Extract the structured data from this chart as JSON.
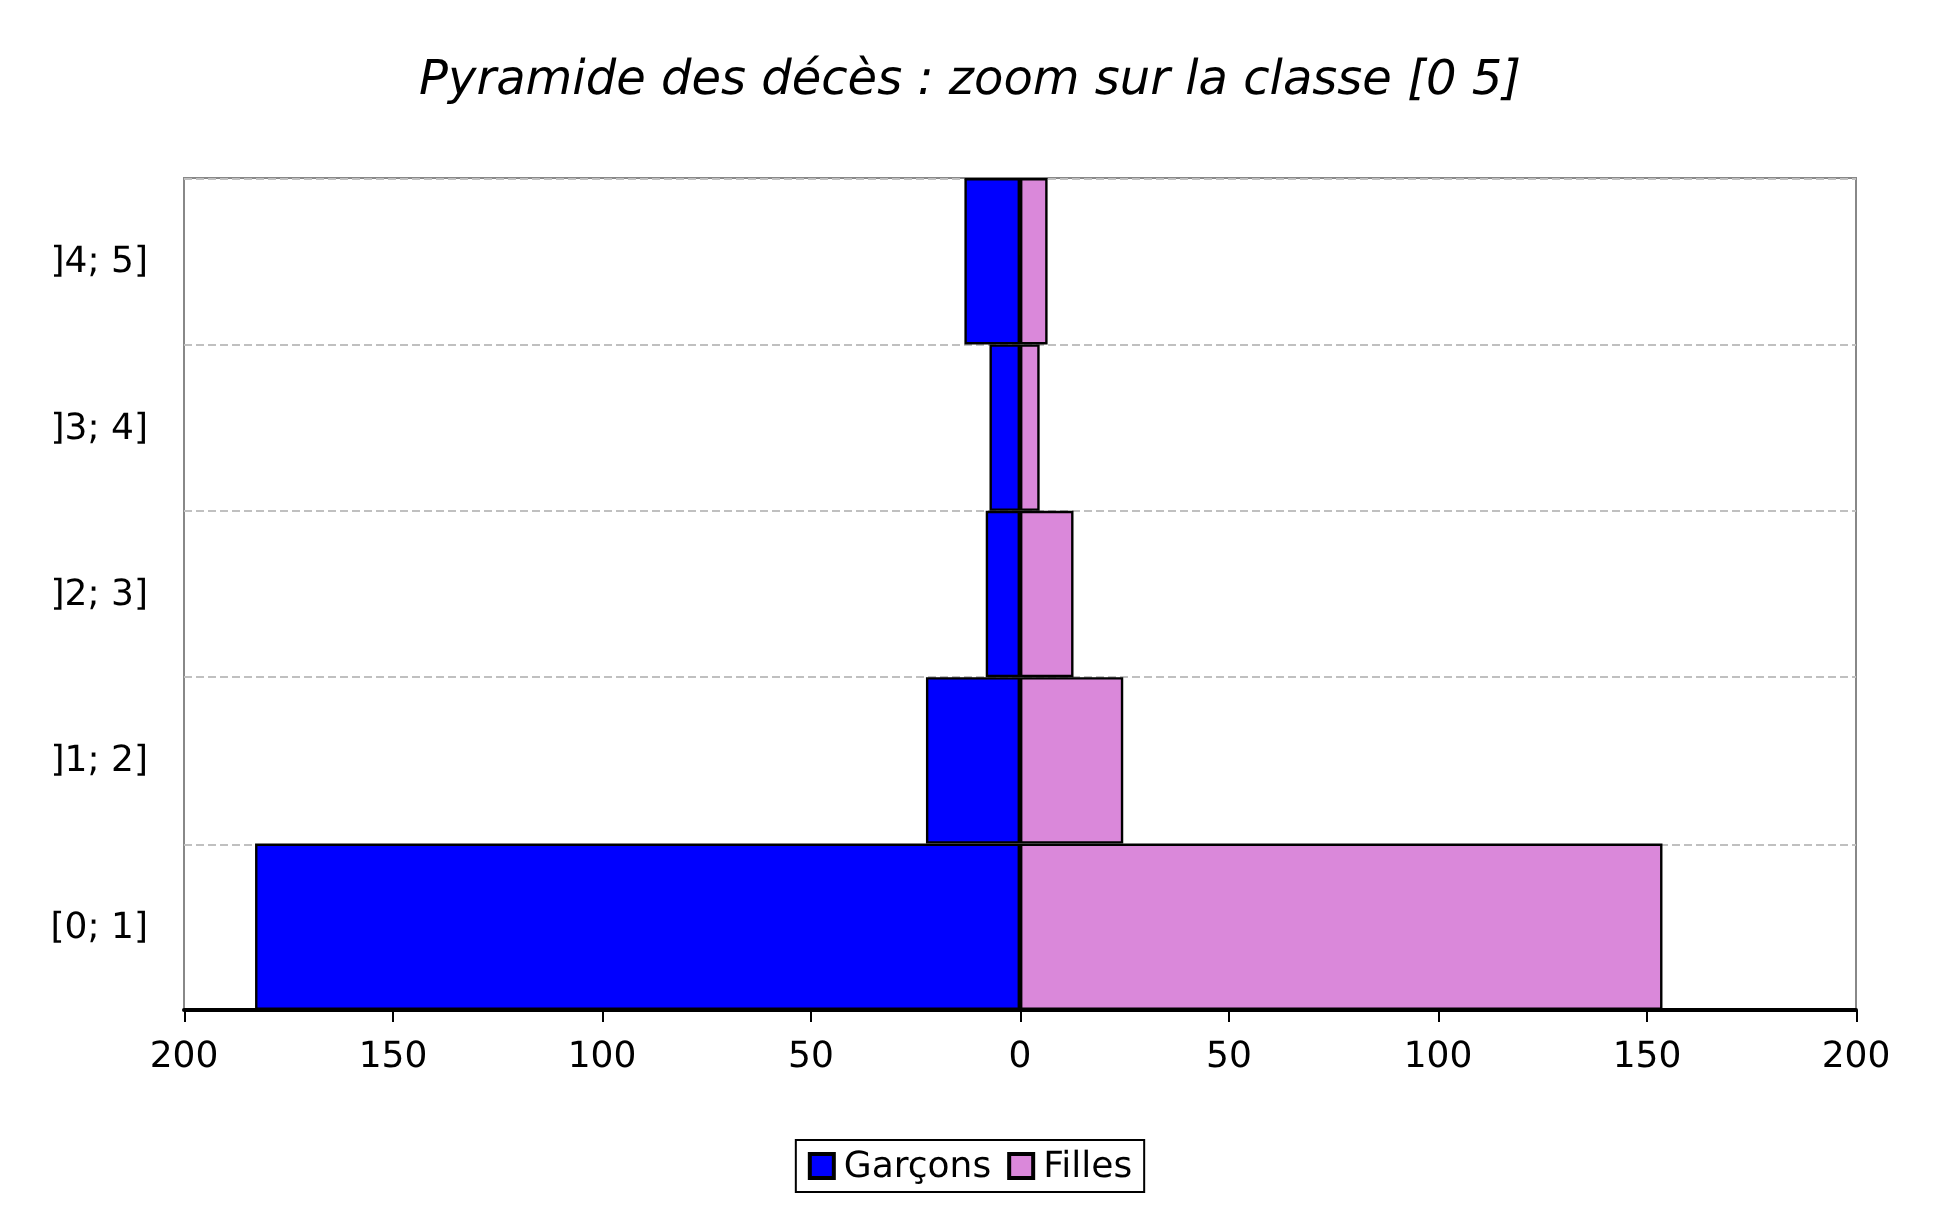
{
  "chart_data": {
    "type": "bar",
    "title": "Pyramide des décès : zoom sur la classe [0 5]",
    "orientation": "horizontal",
    "stacked": true,
    "categories": [
      "]4; 5]",
      "]3; 4]",
      "]2; 3]",
      "]1; 2]",
      "[0; 1]"
    ],
    "series": [
      {
        "name": "Garçons",
        "color": "#0000ff",
        "values": [
          -13.3,
          -7.3,
          -8.2,
          -22.5,
          -183
        ]
      },
      {
        "name": "Filles",
        "color": "#da88da",
        "values": [
          6.6,
          4.7,
          12.8,
          24.7,
          153.7
        ]
      }
    ],
    "xlim": [
      -200,
      200
    ],
    "xticks": [
      {
        "value": -200,
        "label": "200"
      },
      {
        "value": -150,
        "label": "150"
      },
      {
        "value": -100,
        "label": "100"
      },
      {
        "value": -50,
        "label": "50"
      },
      0,
      50,
      100,
      150,
      200
    ],
    "grid": "y",
    "legend": "bottom"
  }
}
